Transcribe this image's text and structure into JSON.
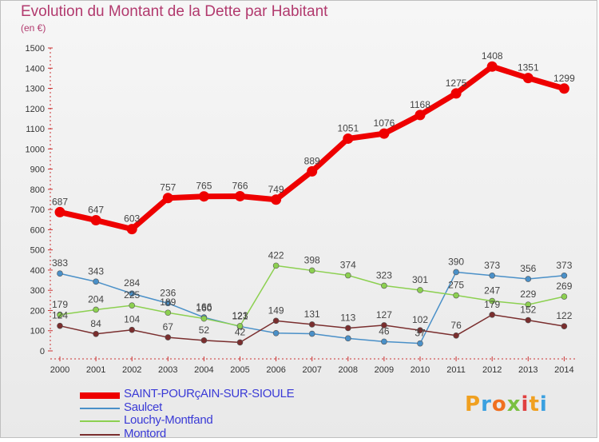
{
  "title": "Evolution du Montant de la Dette par Habitant",
  "subtitle": "(en €)",
  "brand": "Proxiti",
  "chart_data": {
    "type": "line",
    "title": "Evolution du Montant de la Dette par Habitant",
    "ylabel": "(en €)",
    "xlabel": "",
    "ylim": [
      0,
      1500
    ],
    "ytick_step": 100,
    "x": [
      "2000",
      "2001",
      "2002",
      "2003",
      "2004",
      "2005",
      "2006",
      "2007",
      "2008",
      "2009",
      "2010",
      "2011",
      "2012",
      "2013",
      "2014"
    ],
    "legend_position": "bottom-left",
    "grid": false,
    "series": [
      {
        "name": "SAINT-POURçAIN-SUR-SIOULE",
        "color": "#ee0000",
        "values": [
          687,
          647,
          603,
          757,
          765,
          766,
          749,
          889,
          1051,
          1076,
          1168,
          1275,
          1408,
          1351,
          1299
        ],
        "labels": [
          "687",
          "647",
          "603",
          "757",
          "765",
          "766",
          "749",
          "889",
          "1051",
          "1076",
          "1168",
          "1275",
          "1408",
          "1351",
          "1299"
        ]
      },
      {
        "name": "Saulcet",
        "color": "#4a90c8",
        "values": [
          383,
          343,
          284,
          236,
          166,
          121,
          88,
          85,
          62,
          46,
          37,
          390,
          373,
          356,
          373
        ],
        "labels": [
          "383",
          "343",
          "284",
          "236",
          "166",
          "121",
          "",
          "",
          "",
          "46",
          "37",
          "390",
          "373",
          "356",
          "373"
        ]
      },
      {
        "name": "Louchy-Montfand",
        "color": "#8cd050",
        "values": [
          179,
          204,
          225,
          189,
          160,
          123,
          422,
          398,
          374,
          323,
          301,
          275,
          247,
          229,
          269
        ],
        "labels": [
          "179",
          "204",
          "225",
          "189",
          "160",
          "123",
          "422",
          "398",
          "374",
          "323",
          "301",
          "275",
          "247",
          "229",
          "269"
        ]
      },
      {
        "name": "Montord",
        "color": "#7a2e2e",
        "values": [
          124,
          84,
          104,
          67,
          52,
          42,
          149,
          131,
          113,
          127,
          102,
          76,
          179,
          152,
          122
        ],
        "labels": [
          "124",
          "84",
          "104",
          "67",
          "52",
          "42",
          "149",
          "131",
          "113",
          "127",
          "102",
          "76",
          "179",
          "152",
          "122"
        ]
      }
    ]
  }
}
